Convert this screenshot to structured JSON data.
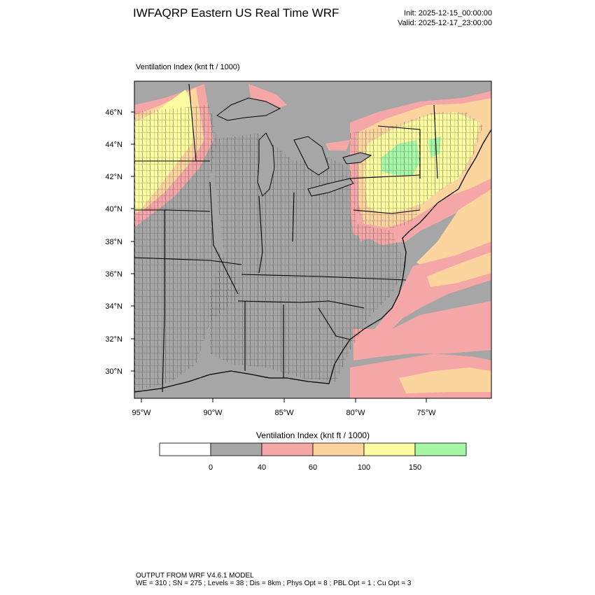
{
  "header": {
    "title": "IWFAQRP Eastern US Real Time WRF",
    "init": "Init: 2025-12-15_00:00:00",
    "valid": "Valid: 2025-12-17_23:00:00"
  },
  "map": {
    "field_title": "Ventilation Index   (knt ft / 1000)",
    "lat_labels": [
      "46°N",
      "44°N",
      "42°N",
      "40°N",
      "38°N",
      "36°N",
      "34°N",
      "32°N",
      "30°N"
    ],
    "lon_labels": [
      "95°W",
      "90°W",
      "85°W",
      "80°W",
      "75°W"
    ]
  },
  "legend": {
    "title": "Ventilation Index  (knt ft / 1000)",
    "bins": [
      {
        "color": "#ffffff"
      },
      {
        "color": "#a6a6a6"
      },
      {
        "color": "#f5a6a6"
      },
      {
        "color": "#fbd49e"
      },
      {
        "color": "#fbfb9f"
      },
      {
        "color": "#a6f7a6"
      }
    ],
    "tick_labels": [
      "0",
      "40",
      "60",
      "100",
      "150"
    ]
  },
  "footer": {
    "line1": "OUTPUT FROM WRF V4.6.1 MODEL",
    "line2": "WE = 310 ; SN = 275 ; Levels = 38 ; Dis = 8km ; Phys Opt = 8 ; PBL Opt = 1 ; Cu Opt = 3"
  }
}
